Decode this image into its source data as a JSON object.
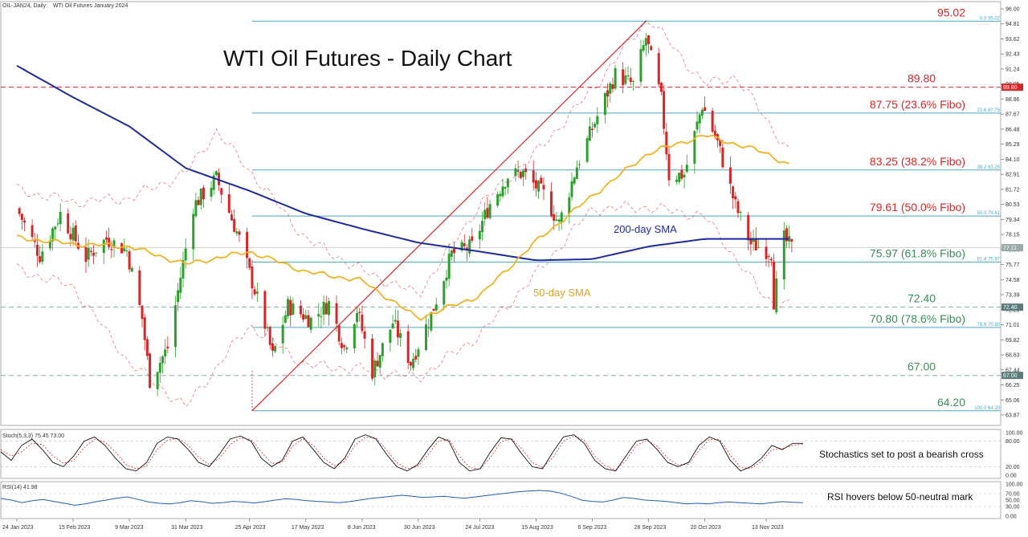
{
  "header": {
    "instrument": "OIL-JAN24, Daily:",
    "description": "WTI Oil Futures January 2024"
  },
  "colors": {
    "candle_up": "#2ca02c",
    "candle_down": "#d62728",
    "sma200": "#1f2a9e",
    "sma50": "#f0b323",
    "bollinger": "#d62728",
    "fibo_line": "#4aa8c0",
    "trendline": "#d62728",
    "resistance_dash": "#d62728",
    "support_dash": "#8aa8a8",
    "price_tag": "#5b7b7b",
    "stoch_main": "#111111",
    "stoch_signal": "#d62728",
    "rsi": "#1f5fb4"
  },
  "chart_data": [
    {
      "type": "candlestick",
      "title": "WTI Oil Futures - Daily Chart",
      "ylim": [
        63.87,
        96.0
      ],
      "y_ticks": [
        "96.00",
        "94.81",
        "93.62",
        "92.43",
        "91.24",
        "90.05",
        "88.86",
        "87.67",
        "86.48",
        "85.29",
        "84.10",
        "82.91",
        "81.72",
        "80.53",
        "79.34",
        "78.15",
        "76.96",
        "75.77",
        "74.58",
        "73.39",
        "72.20",
        "71.01",
        "69.82",
        "68.63",
        "67.44",
        "66.25",
        "65.06",
        "63.87"
      ],
      "x_ticks": [
        "24 Jan 2023",
        "15 Feb 2023",
        "9 Mar 2023",
        "31 Mar 2023",
        "25 Apr 2023",
        "17 May 2023",
        "8 Jun 2023",
        "30 Jun 2023",
        "24 Jul 2023",
        "15 Aug 2023",
        "6 Sep 2023",
        "28 Sep 2023",
        "20 Oct 2023",
        "13 Nov 2023"
      ],
      "annotations": [
        {
          "text": "200-day SMA",
          "series": "sma200"
        },
        {
          "text": "50-day SMA",
          "series": "sma50"
        }
      ],
      "fibonacci_levels": [
        {
          "value": 95.02,
          "label": "95.02",
          "tag": "0.0 95.02",
          "label_color": "#d62728"
        },
        {
          "value": 87.75,
          "label": "87.75 (23.6% Fibo)",
          "tag": "23.6 87.75",
          "label_color": "#d62728"
        },
        {
          "value": 83.25,
          "label": "83.25 (38.2% Fibo)",
          "tag": "38.2 83.25",
          "label_color": "#d62728"
        },
        {
          "value": 79.61,
          "label": "79.61 (50.0% Fibo)",
          "tag": "50.0 79.61",
          "label_color": "#d62728"
        },
        {
          "value": 75.97,
          "label": "75.97 (61.8% Fibo)",
          "tag": "61.8 75.97",
          "label_color": "#3d8a5a"
        },
        {
          "value": 70.8,
          "label": "70.80 (78.6% Fibo)",
          "tag": "78.6 70.80",
          "label_color": "#3d8a5a"
        },
        {
          "value": 64.2,
          "label": "64.20",
          "tag": "100.0 64.20",
          "label_color": "#3d8a5a"
        }
      ],
      "horizontal_levels": [
        {
          "value": 89.8,
          "label": "89.80",
          "tag": "89.80",
          "style": "resistance",
          "label_color": "#d62728"
        },
        {
          "value": 72.4,
          "label": "72.40",
          "tag": "72.40",
          "style": "support",
          "label_color": "#3d8a5a"
        },
        {
          "value": 67.0,
          "label": "67.00",
          "tag": "67.00",
          "style": "support",
          "label_color": "#3d8a5a"
        }
      ],
      "current_price": {
        "value": 77.11,
        "tag": "77.11"
      },
      "trendline": {
        "from": {
          "date": "26 Apr 2023",
          "value": 64.2
        },
        "to": {
          "date": "27 Sep 2023",
          "value": 95.02
        }
      },
      "price_path": [
        {
          "date": "24 Jan 2023",
          "value": 80.2
        },
        {
          "date": "2 Feb 2023",
          "value": 76.5
        },
        {
          "date": "10 Feb 2023",
          "value": 79.8
        },
        {
          "date": "20 Feb 2023",
          "value": 76.3
        },
        {
          "date": "28 Feb 2023",
          "value": 77.8
        },
        {
          "date": "8 Mar 2023",
          "value": 76.9
        },
        {
          "date": "14 Mar 2023",
          "value": 71.5
        },
        {
          "date": "17 Mar 2023",
          "value": 66.6
        },
        {
          "date": "24 Mar 2023",
          "value": 69.2
        },
        {
          "date": "3 Apr 2023",
          "value": 80.4
        },
        {
          "date": "12 Apr 2023",
          "value": 82.6
        },
        {
          "date": "21 Apr 2023",
          "value": 77.8
        },
        {
          "date": "1 May 2023",
          "value": 71.0
        },
        {
          "date": "4 May 2023",
          "value": 68.5
        },
        {
          "date": "10 May 2023",
          "value": 72.5
        },
        {
          "date": "19 May 2023",
          "value": 71.4
        },
        {
          "date": "26 May 2023",
          "value": 72.7
        },
        {
          "date": "1 Jun 2023",
          "value": 69.2
        },
        {
          "date": "6 Jun 2023",
          "value": 72.2
        },
        {
          "date": "12 Jun 2023",
          "value": 67.3
        },
        {
          "date": "20 Jun 2023",
          "value": 71.2
        },
        {
          "date": "27 Jun 2023",
          "value": 68.0
        },
        {
          "date": "5 Jul 2023",
          "value": 71.8
        },
        {
          "date": "13 Jul 2023",
          "value": 76.6
        },
        {
          "date": "21 Jul 2023",
          "value": 77.2
        },
        {
          "date": "28 Jul 2023",
          "value": 80.6
        },
        {
          "date": "4 Aug 2023",
          "value": 82.8
        },
        {
          "date": "10 Aug 2023",
          "value": 83.0
        },
        {
          "date": "18 Aug 2023",
          "value": 81.3
        },
        {
          "date": "24 Aug 2023",
          "value": 79.0
        },
        {
          "date": "31 Aug 2023",
          "value": 83.6
        },
        {
          "date": "8 Sep 2023",
          "value": 87.5
        },
        {
          "date": "15 Sep 2023",
          "value": 90.8
        },
        {
          "date": "22 Sep 2023",
          "value": 90.0
        },
        {
          "date": "27 Sep 2023",
          "value": 93.7
        },
        {
          "date": "3 Oct 2023",
          "value": 88.8
        },
        {
          "date": "6 Oct 2023",
          "value": 82.8
        },
        {
          "date": "12 Oct 2023",
          "value": 82.9
        },
        {
          "date": "19 Oct 2023",
          "value": 88.4
        },
        {
          "date": "25 Oct 2023",
          "value": 85.4
        },
        {
          "date": "1 Nov 2023",
          "value": 80.4
        },
        {
          "date": "7 Nov 2023",
          "value": 77.4
        },
        {
          "date": "10 Nov 2023",
          "value": 77.2
        },
        {
          "date": "15 Nov 2023",
          "value": 76.7
        },
        {
          "date": "16 Nov 2023",
          "value": 72.9
        },
        {
          "date": "20 Nov 2023",
          "value": 77.8
        },
        {
          "date": "23 Nov 2023",
          "value": 77.1
        }
      ],
      "sma200": [
        {
          "date": "24 Jan 2023",
          "value": 91.5
        },
        {
          "date": "15 Feb 2023",
          "value": 89.0
        },
        {
          "date": "9 Mar 2023",
          "value": 86.7
        },
        {
          "date": "31 Mar 2023",
          "value": 83.4
        },
        {
          "date": "25 Apr 2023",
          "value": 81.6
        },
        {
          "date": "17 May 2023",
          "value": 79.8
        },
        {
          "date": "8 Jun 2023",
          "value": 78.6
        },
        {
          "date": "30 Jun 2023",
          "value": 77.5
        },
        {
          "date": "24 Jul 2023",
          "value": 76.8
        },
        {
          "date": "15 Aug 2023",
          "value": 76.1
        },
        {
          "date": "6 Sep 2023",
          "value": 76.2
        },
        {
          "date": "28 Sep 2023",
          "value": 77.2
        },
        {
          "date": "20 Oct 2023",
          "value": 77.8
        },
        {
          "date": "13 Nov 2023",
          "value": 77.8
        },
        {
          "date": "23 Nov 2023",
          "value": 77.8
        }
      ],
      "sma50": [
        {
          "date": "24 Jan 2023",
          "value": 77.9
        },
        {
          "date": "15 Feb 2023",
          "value": 77.4
        },
        {
          "date": "9 Mar 2023",
          "value": 77.2
        },
        {
          "date": "31 Mar 2023",
          "value": 75.8
        },
        {
          "date": "25 Apr 2023",
          "value": 76.8
        },
        {
          "date": "17 May 2023",
          "value": 75.2
        },
        {
          "date": "8 Jun 2023",
          "value": 74.5
        },
        {
          "date": "30 Jun 2023",
          "value": 71.5
        },
        {
          "date": "24 Jul 2023",
          "value": 73.3
        },
        {
          "date": "15 Aug 2023",
          "value": 77.6
        },
        {
          "date": "6 Sep 2023",
          "value": 81.2
        },
        {
          "date": "28 Sep 2023",
          "value": 84.6
        },
        {
          "date": "20 Oct 2023",
          "value": 86.0
        },
        {
          "date": "13 Nov 2023",
          "value": 84.6
        },
        {
          "date": "23 Nov 2023",
          "value": 83.5
        }
      ],
      "bollinger_upper": [
        {
          "date": "24 Jan 2023",
          "value": 81.7
        },
        {
          "date": "15 Feb 2023",
          "value": 80.7
        },
        {
          "date": "9 Mar 2023",
          "value": 81.0
        },
        {
          "date": "31 Mar 2023",
          "value": 83.0
        },
        {
          "date": "12 Apr 2023",
          "value": 86.3
        },
        {
          "date": "25 Apr 2023",
          "value": 83.2
        },
        {
          "date": "17 May 2023",
          "value": 77.8
        },
        {
          "date": "8 Jun 2023",
          "value": 75.3
        },
        {
          "date": "30 Jun 2023",
          "value": 73.4
        },
        {
          "date": "24 Jul 2023",
          "value": 80.5
        },
        {
          "date": "15 Aug 2023",
          "value": 84.6
        },
        {
          "date": "6 Sep 2023",
          "value": 89.6
        },
        {
          "date": "28 Sep 2023",
          "value": 95.3
        },
        {
          "date": "20 Oct 2023",
          "value": 90.0
        },
        {
          "date": "1 Nov 2023",
          "value": 90.7
        },
        {
          "date": "23 Nov 2023",
          "value": 84.4
        }
      ],
      "bollinger_lower": [
        {
          "date": "24 Jan 2023",
          "value": 75.4
        },
        {
          "date": "15 Feb 2023",
          "value": 74.0
        },
        {
          "date": "9 Mar 2023",
          "value": 68.0
        },
        {
          "date": "31 Mar 2023",
          "value": 64.5
        },
        {
          "date": "25 Apr 2023",
          "value": 71.0
        },
        {
          "date": "17 May 2023",
          "value": 67.8
        },
        {
          "date": "8 Jun 2023",
          "value": 67.5
        },
        {
          "date": "30 Jun 2023",
          "value": 66.8
        },
        {
          "date": "24 Jul 2023",
          "value": 70.2
        },
        {
          "date": "15 Aug 2023",
          "value": 75.0
        },
        {
          "date": "6 Sep 2023",
          "value": 80.2
        },
        {
          "date": "28 Sep 2023",
          "value": 80.3
        },
        {
          "date": "20 Oct 2023",
          "value": 79.6
        },
        {
          "date": "13 Nov 2023",
          "value": 73.0
        },
        {
          "date": "23 Nov 2023",
          "value": 72.6
        }
      ]
    },
    {
      "type": "line",
      "title": "Stoch(5,3,3) 75.45 73.00",
      "ylim": [
        0,
        100
      ],
      "y_ticks": [
        "100.00",
        "80.00",
        "20.00",
        "0.00"
      ],
      "note": "Stochastics set to post a bearish cross",
      "series": [
        {
          "name": "main",
          "values": [
            55,
            35,
            70,
            85,
            60,
            30,
            20,
            45,
            80,
            90,
            70,
            40,
            15,
            10,
            30,
            75,
            90,
            85,
            60,
            30,
            20,
            50,
            85,
            92,
            80,
            40,
            20,
            35,
            80,
            90,
            60,
            30,
            15,
            40,
            85,
            95,
            85,
            50,
            20,
            10,
            25,
            60,
            90,
            80,
            30,
            10,
            15,
            55,
            88,
            85,
            50,
            20,
            15,
            55,
            90,
            95,
            75,
            35,
            15,
            10,
            45,
            80,
            85,
            60,
            30,
            20,
            30,
            70,
            90,
            80,
            35,
            10,
            20,
            40,
            70,
            60,
            75,
            75
          ]
        },
        {
          "name": "signal",
          "values": [
            60,
            45,
            55,
            75,
            72,
            45,
            28,
            35,
            65,
            85,
            78,
            55,
            25,
            15,
            22,
            60,
            82,
            87,
            70,
            42,
            25,
            40,
            72,
            88,
            84,
            55,
            28,
            30,
            68,
            86,
            70,
            40,
            22,
            32,
            70,
            90,
            88,
            60,
            30,
            15,
            20,
            48,
            80,
            84,
            45,
            18,
            14,
            42,
            78,
            86,
            62,
            30,
            18,
            42,
            80,
            92,
            82,
            45,
            22,
            12,
            35,
            70,
            82,
            68,
            40,
            24,
            26,
            58,
            84,
            84,
            48,
            18,
            16,
            32,
            60,
            62,
            70,
            73
          ]
        }
      ]
    },
    {
      "type": "line",
      "title": "RSI(14) 41.98",
      "ylim": [
        0,
        100
      ],
      "y_ticks": [
        "100.00",
        "70.00",
        "50.00",
        "30.00",
        "0.00"
      ],
      "note": "RSI hovers below 50-neutral mark",
      "series": [
        {
          "name": "RSI",
          "values": [
            55,
            50,
            42,
            48,
            52,
            46,
            40,
            34,
            38,
            45,
            50,
            56,
            60,
            52,
            44,
            40,
            38,
            42,
            48,
            45,
            40,
            42,
            46,
            44,
            41,
            45,
            50,
            54,
            52,
            48,
            46,
            44,
            42,
            45,
            50,
            55,
            58,
            62,
            65,
            62,
            58,
            60,
            62,
            58,
            56,
            60,
            64,
            68,
            72,
            76,
            78,
            80,
            78,
            72,
            62,
            50,
            46,
            44,
            50,
            58,
            55,
            50,
            48,
            46,
            42,
            38,
            40,
            38,
            42,
            44,
            42,
            40,
            38,
            42,
            45,
            43,
            42
          ]
        }
      ]
    }
  ]
}
